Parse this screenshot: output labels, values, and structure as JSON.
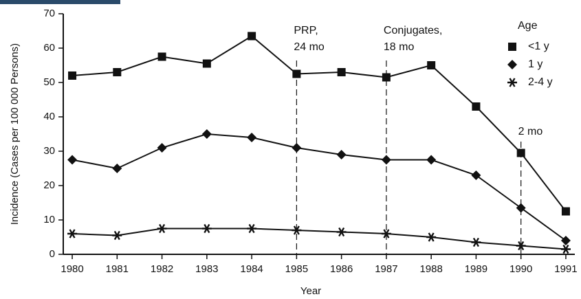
{
  "chart_data": {
    "type": "line",
    "x_label": "Year",
    "y_label": "Incidence (Cases per 100 000 Persons)",
    "x": [
      1980,
      1981,
      1982,
      1983,
      1984,
      1985,
      1986,
      1987,
      1988,
      1989,
      1990,
      1991
    ],
    "xlim": [
      1979.8,
      1991.2
    ],
    "xticks": [
      1980,
      1981,
      1982,
      1983,
      1984,
      1985,
      1986,
      1987,
      1988,
      1989,
      1990,
      1991
    ],
    "ylim": [
      0,
      70
    ],
    "yticks": [
      0,
      10,
      20,
      30,
      40,
      50,
      60,
      70
    ],
    "legend_title": "Age",
    "legend_position": "upper right",
    "series": [
      {
        "name": "<1 y",
        "marker": "square",
        "color": "#111111",
        "values": [
          52,
          53,
          57.5,
          55.5,
          63.5,
          52.5,
          53,
          51.5,
          55,
          43,
          29.5,
          12.5
        ]
      },
      {
        "name": "1 y",
        "marker": "diamond",
        "color": "#111111",
        "values": [
          27.5,
          25,
          31,
          35,
          34,
          31,
          29,
          27.5,
          27.5,
          23,
          13.5,
          4
        ]
      },
      {
        "name": "2-4 y",
        "marker": "asterisk",
        "color": "#111111",
        "values": [
          6,
          5.5,
          7.5,
          7.5,
          7.5,
          7,
          6.5,
          6,
          5,
          3.5,
          2.5,
          1.5
        ]
      }
    ],
    "annotations": [
      {
        "lines": [
          "PRP,",
          "24 mo"
        ],
        "x": 1985
      },
      {
        "lines": [
          "Conjugates,",
          "18 mo"
        ],
        "x": 1987
      },
      {
        "lines": [
          "2 mo"
        ],
        "x": 1990
      }
    ]
  }
}
